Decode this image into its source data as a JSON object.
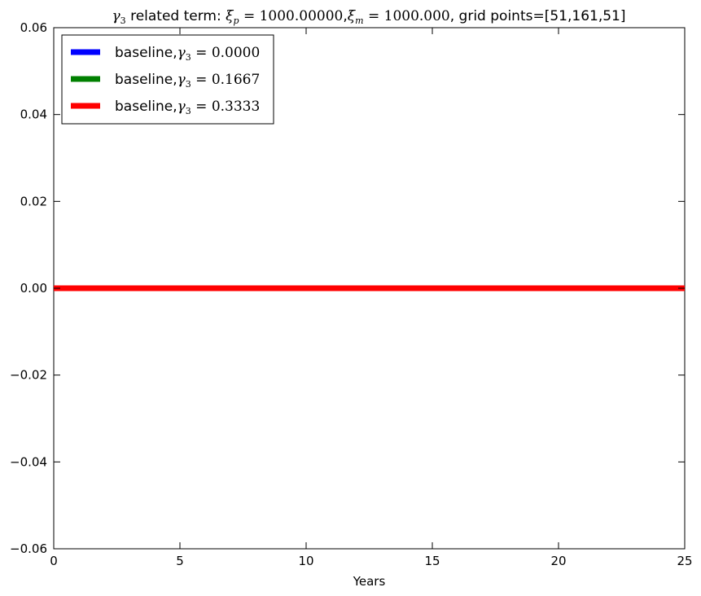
{
  "chart_data": {
    "type": "line",
    "title": {
      "gamma_symbol": "γ",
      "gamma_sub": "3",
      "part1": " related term: ",
      "xi_p_symbol": "ξ",
      "xi_p_sub": "p",
      "xi_p_value": " = 1000.00000",
      "comma": ",",
      "xi_m_symbol": "ξ",
      "xi_m_sub": "m",
      "xi_m_value": " = 1000.000",
      "part2": ", grid points=[51,161,51]"
    },
    "xlabel": "Years",
    "ylabel": "",
    "xlim": [
      0,
      25
    ],
    "ylim": [
      -0.06,
      0.06
    ],
    "xticks": [
      0,
      5,
      10,
      15,
      20,
      25
    ],
    "xtick_labels": [
      "0",
      "5",
      "10",
      "15",
      "20",
      "25"
    ],
    "yticks": [
      0.06,
      0.04,
      0.02,
      0.0,
      -0.02,
      -0.04,
      -0.06
    ],
    "ytick_labels": [
      "0.06",
      "0.04",
      "0.02",
      "0.00",
      "−0.02",
      "−0.04",
      "−0.06"
    ],
    "grid": false,
    "legend_position": "upper-left",
    "series": [
      {
        "name": "baseline,",
        "gamma_symbol": "γ",
        "gamma_sub": "3",
        "gamma_value": " = 0.0000",
        "color": "#0000ff",
        "x": [
          0,
          25
        ],
        "y": [
          0,
          0
        ]
      },
      {
        "name": "baseline,",
        "gamma_symbol": "γ",
        "gamma_sub": "3",
        "gamma_value": " = 0.1667",
        "color": "#008000",
        "x": [
          0,
          25
        ],
        "y": [
          0,
          0
        ]
      },
      {
        "name": "baseline,",
        "gamma_symbol": "γ",
        "gamma_sub": "3",
        "gamma_value": " = 0.3333",
        "color": "#ff0000",
        "x": [
          0,
          25
        ],
        "y": [
          0,
          0
        ]
      }
    ]
  }
}
